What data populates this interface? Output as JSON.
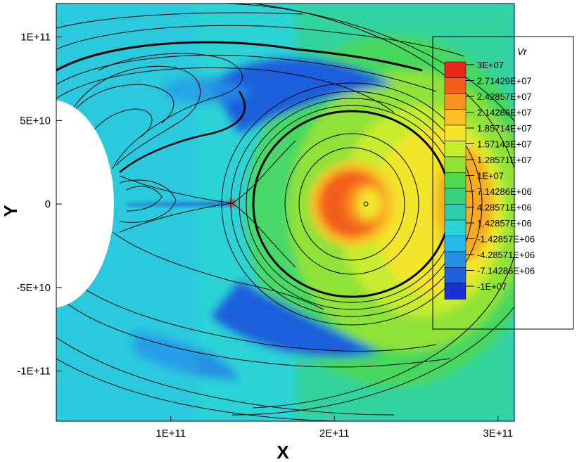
{
  "chart_data": {
    "type": "heatmap",
    "title": "",
    "xlabel": "X",
    "ylabel": "Y",
    "xlim": [
      30000000000,
      310000000000
    ],
    "ylim": [
      -130000000000,
      120000000000
    ],
    "x_ticks": [
      {
        "value": 100000000000,
        "label": "1E+11"
      },
      {
        "value": 200000000000,
        "label": "2E+11"
      },
      {
        "value": 300000000000,
        "label": "3E+11"
      }
    ],
    "y_ticks": [
      {
        "value": 100000000000,
        "label": "1E+11"
      },
      {
        "value": 50000000000,
        "label": "5E+10"
      },
      {
        "value": 0,
        "label": "0"
      },
      {
        "value": -50000000000,
        "label": "-5E+10"
      },
      {
        "value": -100000000000,
        "label": "-1E+11"
      }
    ],
    "legend": {
      "title": "Vr",
      "placement": "right",
      "levels": [
        {
          "label": "3E+07",
          "color": "#e8261a"
        },
        {
          "label": "2.71429E+07",
          "color": "#f25e1c"
        },
        {
          "label": "2.42857E+07",
          "color": "#f8921e"
        },
        {
          "label": "2.14286E+07",
          "color": "#fbc025"
        },
        {
          "label": "1.85714E+07",
          "color": "#f2e52b"
        },
        {
          "label": "1.57143E+07",
          "color": "#c8ec2e"
        },
        {
          "label": "1.28571E+07",
          "color": "#8fe238"
        },
        {
          "label": "1E+07",
          "color": "#4fd94c"
        },
        {
          "label": "7.14286E+06",
          "color": "#35d27c"
        },
        {
          "label": "4.28571E+06",
          "color": "#2ecfae"
        },
        {
          "label": "1.42857E+06",
          "color": "#2cd3d6"
        },
        {
          "label": "-1.42857E+06",
          "color": "#27b8ec"
        },
        {
          "label": "-4.28571E+06",
          "color": "#2590e6"
        },
        {
          "label": "-7.14286E+06",
          "color": "#1f5fdc"
        },
        {
          "label": "-1E+07",
          "color": "#1b30d2"
        }
      ]
    },
    "background_color": "#2cd3d6",
    "grid": false
  }
}
